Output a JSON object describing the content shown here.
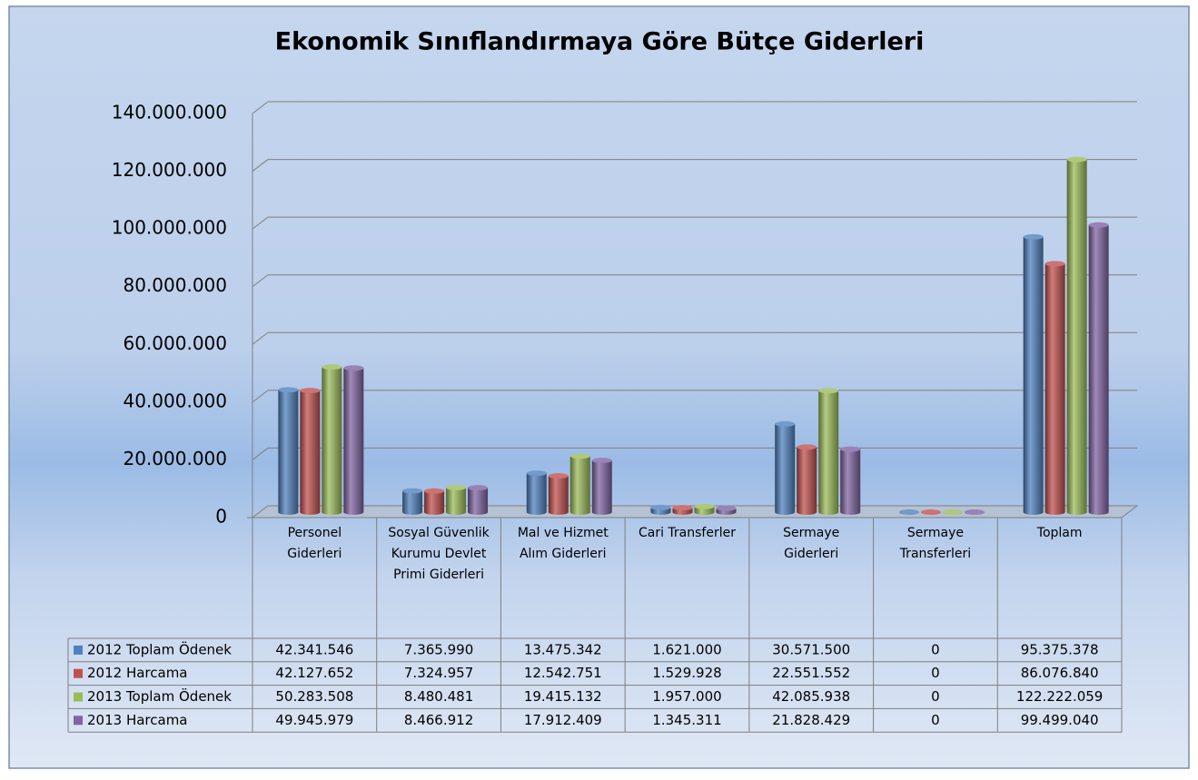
{
  "chart_data": {
    "type": "bar3d",
    "title": "Ekonomik Sınıflandırmaya Göre Bütçe Giderleri",
    "categories": [
      "Personel Giderleri",
      "Sosyal Güvenlik Kurumu Devlet Primi Giderleri",
      "Mal ve Hizmet Alım Giderleri",
      "Cari Transferler",
      "Sermaye Giderleri",
      "Sermaye Transferleri",
      "Toplam"
    ],
    "series": [
      {
        "name": "2012 Toplam Ödenek",
        "color": "#4f81bd",
        "values": [
          42341546,
          7365990,
          13475342,
          1621000,
          30571500,
          0,
          95375378
        ],
        "value_labels": [
          "42.341.546",
          "7.365.990",
          "13.475.342",
          "1.621.000",
          "30.571.500",
          "0",
          "95.375.378"
        ]
      },
      {
        "name": "2012 Harcama",
        "color": "#c0504d",
        "values": [
          42127652,
          7324957,
          12542751,
          1529928,
          22551552,
          0,
          86076840
        ],
        "value_labels": [
          "42.127.652",
          "7.324.957",
          "12.542.751",
          "1.529.928",
          "22.551.552",
          "0",
          "86.076.840"
        ]
      },
      {
        "name": "2013 Toplam Ödenek",
        "color": "#9bbb59",
        "values": [
          50283508,
          8480481,
          19415132,
          1957000,
          42085938,
          0,
          122222059
        ],
        "value_labels": [
          "50.283.508",
          "8.480.481",
          "19.415.132",
          "1.957.000",
          "42.085.938",
          "0",
          "122.222.059"
        ]
      },
      {
        "name": "2013 Harcama",
        "color": "#8064a2",
        "values": [
          49945979,
          8466912,
          17912409,
          1345311,
          21828429,
          0,
          99499040
        ],
        "value_labels": [
          "49.945.979",
          "8.466.912",
          "17.912.409",
          "1.345.311",
          "21.828.429",
          "0",
          "99.499.040"
        ]
      }
    ],
    "ylim": [
      0,
      140000000
    ],
    "yticks": [
      0,
      {
        "value": 20000000,
        "label": "20.000.000"
      },
      {
        "value": 40000000,
        "label": "40.000.000"
      },
      {
        "value": 60000000,
        "label": "60.000.000"
      },
      {
        "value": 80000000,
        "label": "80.000.000"
      },
      {
        "value": 100000000,
        "label": "100.000.000"
      },
      {
        "value": 120000000,
        "label": "120.000.000"
      },
      {
        "value": 140000000,
        "label": "140.000.000"
      }
    ],
    "grid": true,
    "data_table": true
  }
}
